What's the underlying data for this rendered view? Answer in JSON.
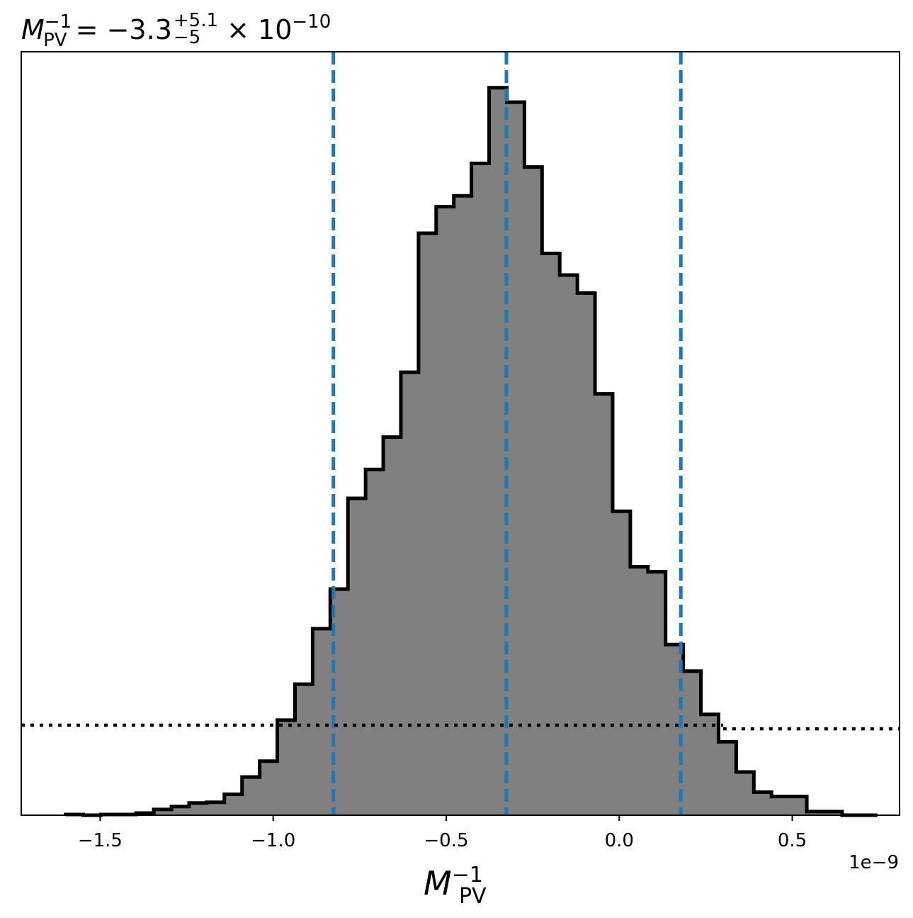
{
  "chart_data": {
    "type": "histogram",
    "title_parts": {
      "symbol": "M",
      "symbol_sup": "−1",
      "symbol_sub": "PV",
      "equals": " = ",
      "median": "−3.3",
      "err_plus": "+5.1",
      "err_minus": "−5",
      "scale": " × 10",
      "scale_exp": "−10"
    },
    "xlabel_parts": {
      "symbol": "M",
      "sup": "−1",
      "sub": "PV"
    },
    "x_offset_label": "1e−9",
    "x_units_note": "x values in units of 1e-9",
    "xlim": [
      -1.728,
      0.81
    ],
    "ylim": [
      0,
      1060
    ],
    "xticks": [
      -1.5,
      -1.0,
      -0.5,
      0.0,
      0.5
    ],
    "xtick_labels": [
      "−1.5",
      "−1.0",
      "−0.5",
      "0.0",
      "0.5"
    ],
    "bin_edges": [
      -1.6,
      -1.549,
      -1.498,
      -1.447,
      -1.396,
      -1.345,
      -1.294,
      -1.243,
      -1.192,
      -1.141,
      -1.09,
      -1.039,
      -0.988,
      -0.937,
      -0.886,
      -0.835,
      -0.784,
      -0.733,
      -0.682,
      -0.631,
      -0.58,
      -0.529,
      -0.478,
      -0.427,
      -0.376,
      -0.325,
      -0.274,
      -0.223,
      -0.172,
      -0.121,
      -0.07,
      -0.019,
      0.032,
      0.083,
      0.134,
      0.185,
      0.236,
      0.287,
      0.338,
      0.389,
      0.44,
      0.491,
      0.542,
      0.593,
      0.644,
      0.695,
      0.746
    ],
    "counts": [
      1,
      0,
      1,
      1,
      3,
      8,
      12,
      17,
      18,
      29,
      53,
      75,
      132,
      182,
      259,
      314,
      440,
      480,
      525,
      615,
      808,
      845,
      860,
      905,
      1010,
      990,
      900,
      780,
      750,
      725,
      585,
      422,
      345,
      338,
      237,
      200,
      140,
      102,
      60,
      32,
      26,
      26,
      5,
      5,
      0,
      0
    ],
    "vlines": [
      -0.826,
      -0.326,
      0.178
    ],
    "vline_color": "#1f77b4",
    "hline_levels": [
      125,
      120
    ],
    "hline_break_x": 0.3,
    "fill_color": "#808080",
    "edge_color": "#000000",
    "grid": false
  }
}
